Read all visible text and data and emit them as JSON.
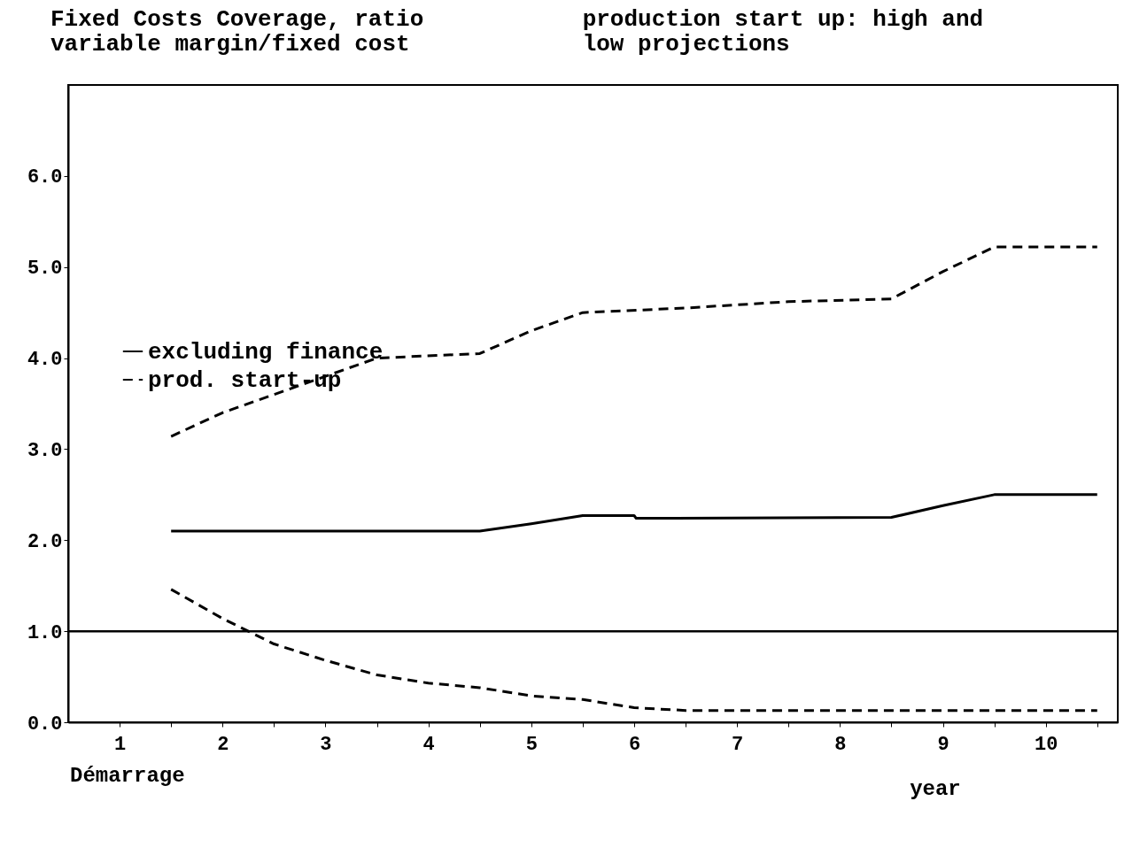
{
  "chart_data": {
    "type": "line",
    "title": "Fixed Costs Coverage, ratio\nvariable margin/fixed cost",
    "subtitle": "production start up: high and\nlow projections",
    "xlabel": "year",
    "annotations": [
      "Démarrage"
    ],
    "xlim": [
      0.5,
      10.7
    ],
    "xticks": [
      1,
      {
        "value": 1.5,
        "label": null
      },
      2,
      {
        "value": 2.5,
        "label": null
      },
      3,
      {
        "value": 3.5,
        "label": null
      },
      4,
      {
        "value": 4.5,
        "label": null
      },
      5,
      {
        "value": 5.5,
        "label": null
      },
      6,
      {
        "value": 6.5,
        "label": null
      },
      7,
      {
        "value": 7.5,
        "label": null
      },
      8,
      {
        "value": 8.5,
        "label": null
      },
      9,
      {
        "value": 9.5,
        "label": null
      },
      10,
      {
        "value": 10.5,
        "label": null
      }
    ],
    "ylim": [
      0,
      7.0
    ],
    "yticks": [
      {
        "value": 0,
        "label": "0.0"
      },
      {
        "value": 1,
        "label": "1.0"
      },
      {
        "value": 2,
        "label": "2.0"
      },
      {
        "value": 3,
        "label": "3.0"
      },
      {
        "value": 4,
        "label": "4.0"
      },
      {
        "value": 5,
        "label": "5.0"
      },
      {
        "value": 6,
        "label": "6.0"
      }
    ],
    "grid": false,
    "legend": "left",
    "marker": "none",
    "ref_lines": [
      {
        "axis": "y",
        "value": 1.0,
        "label": null,
        "color": "#000000",
        "line_style": "solid"
      }
    ],
    "series": [
      {
        "name": "excluding finance",
        "color": "#000000",
        "line_style": "solid",
        "x": [
          1.5,
          4.5,
          5.0,
          5.5,
          6.0,
          6.02,
          8.5,
          9.0,
          9.5,
          10.5
        ],
        "values": [
          2.1,
          2.1,
          2.18,
          2.27,
          2.27,
          2.24,
          2.25,
          2.38,
          2.5,
          2.5
        ]
      },
      {
        "name": "prod. start-up",
        "color": "#000000",
        "line_style": "dashed",
        "x": [
          1.5,
          2.0,
          2.5,
          3.0,
          3.5,
          4.5,
          5.0,
          5.5,
          6.5,
          7.5,
          8.5,
          9.0,
          9.5,
          10.5
        ],
        "values": [
          3.14,
          3.4,
          3.6,
          3.8,
          4.0,
          4.05,
          4.3,
          4.5,
          4.55,
          4.62,
          4.65,
          4.95,
          5.22,
          5.22
        ]
      },
      {
        "color": "#000000",
        "line_style": "dashed",
        "x": [
          1.5,
          2.0,
          2.5,
          3.0,
          3.5,
          4.0,
          4.5,
          5.0,
          5.5,
          6.0,
          6.5,
          10.5
        ],
        "values": [
          1.46,
          1.14,
          0.86,
          0.68,
          0.52,
          0.43,
          0.38,
          0.29,
          0.25,
          0.16,
          0.13,
          0.13
        ]
      }
    ]
  }
}
